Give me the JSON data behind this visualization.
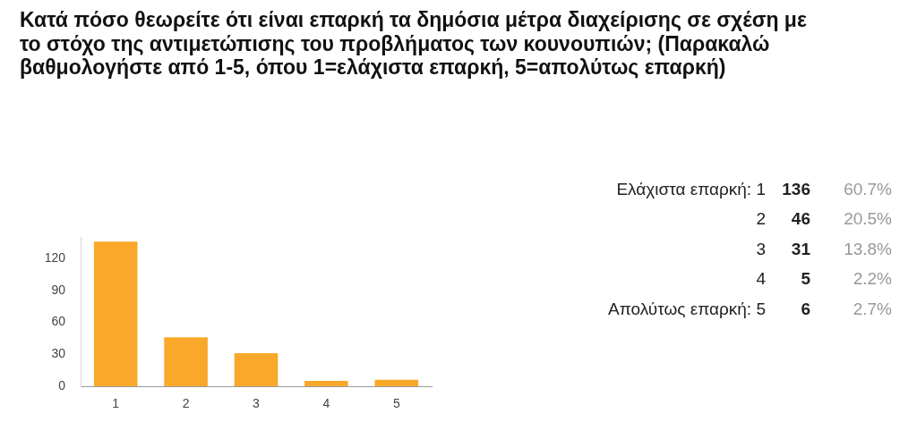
{
  "chart_data": [
    {
      "type": "bar",
      "title": "Κατά πόσο θεωρείτε ότι είναι επαρκή τα δημόσια μέτρα διαχείρισης σε σχέση με το στόχο της αντιμετώπισης του προβλήματος των κουνουπιών; (Παρακαλώ βαθμολογήστε από 1-5, όπου 1=ελάχιστα επαρκή, 5=απολύτως επαρκή)",
      "categories": [
        "1",
        "2",
        "3",
        "4",
        "5"
      ],
      "values": [
        136,
        46,
        31,
        5,
        6
      ],
      "color": "#f9a82a",
      "ylim": [
        0,
        140
      ],
      "yticks": [
        0,
        30,
        60,
        90,
        120
      ]
    },
    {
      "type": "other",
      "categories": [
        "Ελάχιστα επαρκή: 1",
        "2",
        "3",
        "4",
        "Απολύτως επαρκή: 5"
      ],
      "series": [
        {
          "values": [
            136,
            46,
            31,
            5,
            6
          ],
          "color": "#222222"
        },
        {
          "values": [
            60.7,
            20.5,
            13.8,
            2.2,
            2.7
          ],
          "value_labels": [
            "60.7%",
            "20.5%",
            "13.8%",
            "2.2%",
            "2.7%"
          ],
          "color": "#999999"
        }
      ],
      "data_labels": true
    }
  ]
}
